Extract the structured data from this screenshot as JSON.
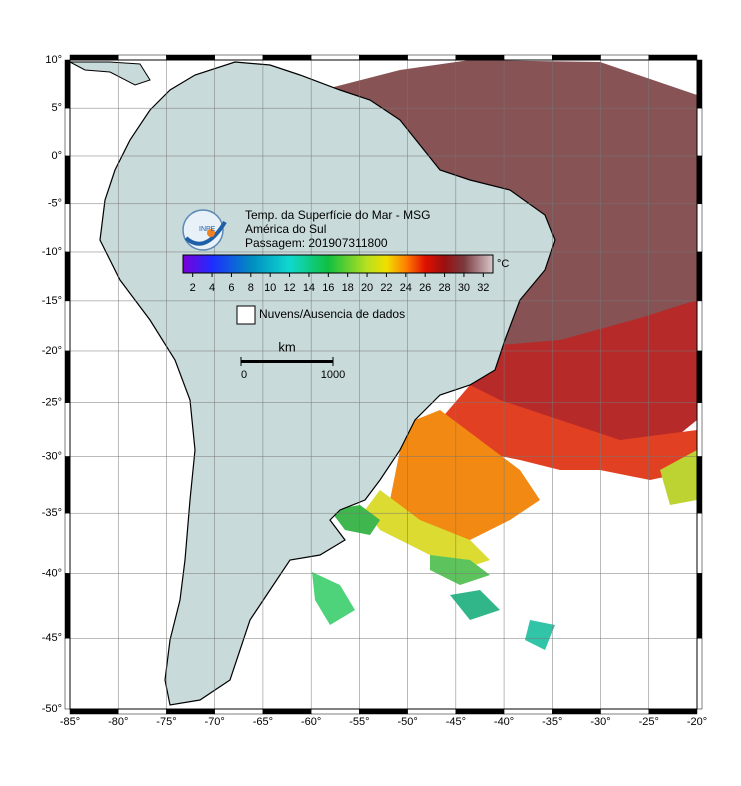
{
  "map": {
    "title_lines": [
      "Temp. da Superfície do Mar - MSG",
      "América do Sul",
      "Passagem: 201907311800"
    ],
    "logo_text": "INPE",
    "lonlim": [
      -85,
      -20
    ],
    "latlim": [
      -50,
      10
    ],
    "lonticks": [
      {
        "value": -85,
        "label": "-85°"
      },
      {
        "value": -80,
        "label": "-80°"
      },
      {
        "value": -75,
        "label": "-75°"
      },
      {
        "value": -70,
        "label": "-70°"
      },
      {
        "value": -65,
        "label": "-65°"
      },
      {
        "value": -60,
        "label": "-60°"
      },
      {
        "value": -55,
        "label": "-55°"
      },
      {
        "value": -50,
        "label": "-50°"
      },
      {
        "value": -45,
        "label": "-45°"
      },
      {
        "value": -40,
        "label": "-40°"
      },
      {
        "value": -35,
        "label": "-35°"
      },
      {
        "value": -30,
        "label": "-30°"
      },
      {
        "value": -25,
        "label": "-25°"
      },
      {
        "value": -20,
        "label": "-20°"
      }
    ],
    "latticks": [
      {
        "value": 10,
        "label": "10°"
      },
      {
        "value": 5,
        "label": "5°"
      },
      {
        "value": 0,
        "label": "0°"
      },
      {
        "value": -5,
        "label": "-5°"
      },
      {
        "value": -10,
        "label": "-10°"
      },
      {
        "value": -15,
        "label": "-15°"
      },
      {
        "value": -20,
        "label": "-20°"
      },
      {
        "value": -25,
        "label": "-25°"
      },
      {
        "value": -30,
        "label": "-30°"
      },
      {
        "value": -35,
        "label": "-35°"
      },
      {
        "value": -40,
        "label": "-40°"
      },
      {
        "value": -45,
        "label": "-45°"
      },
      {
        "value": -50,
        "label": "-50°"
      }
    ],
    "grid": true,
    "colorbar": {
      "unit": "°C",
      "range": [
        1,
        33
      ],
      "ticks": [
        2,
        4,
        6,
        8,
        10,
        12,
        14,
        16,
        18,
        20,
        22,
        24,
        26,
        28,
        30,
        32
      ],
      "stops": [
        {
          "value": 1,
          "color": "#7a00d9"
        },
        {
          "value": 4,
          "color": "#1f2cff"
        },
        {
          "value": 8,
          "color": "#008cc0"
        },
        {
          "value": 12,
          "color": "#10d8d0"
        },
        {
          "value": 16,
          "color": "#10c040"
        },
        {
          "value": 20,
          "color": "#b8e020"
        },
        {
          "value": 22,
          "color": "#f0e000"
        },
        {
          "value": 24,
          "color": "#ff8000"
        },
        {
          "value": 26,
          "color": "#e01000"
        },
        {
          "value": 28,
          "color": "#9a1010"
        },
        {
          "value": 30,
          "color": "#7a3a3e"
        },
        {
          "value": 33,
          "color": "#d8c8cc"
        }
      ]
    },
    "legend_label": "Nuvens/Ausencia de dados",
    "scale_bar": {
      "unit": "km",
      "ticks": [
        0,
        1000
      ]
    }
  }
}
